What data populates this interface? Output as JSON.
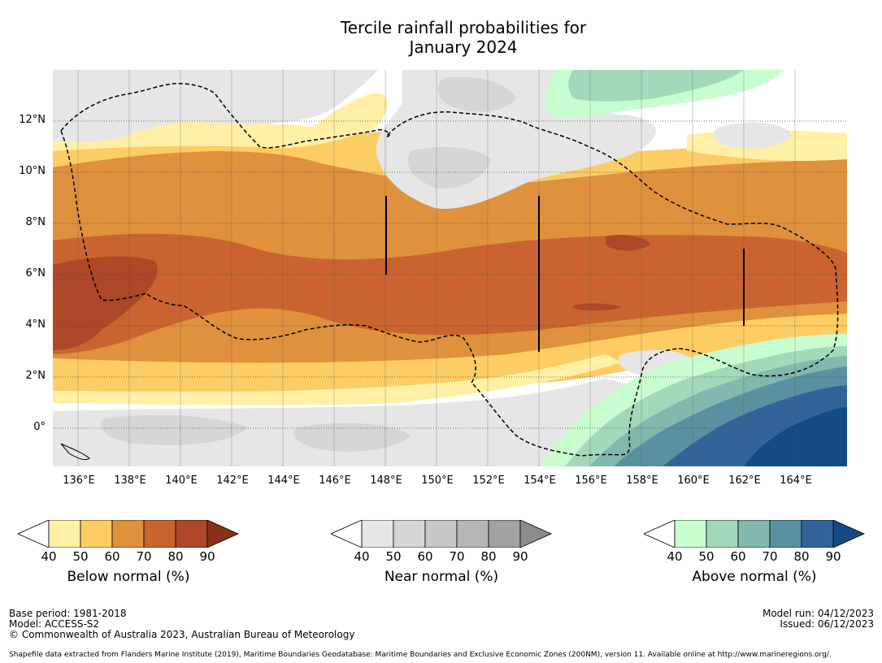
{
  "title_line1": "Tercile rainfall probabilities for",
  "title_line2": "January 2024",
  "x_ticks": [
    "136°E",
    "138°E",
    "140°E",
    "142°E",
    "144°E",
    "146°E",
    "148°E",
    "150°E",
    "152°E",
    "154°E",
    "156°E",
    "158°E",
    "160°E",
    "162°E",
    "164°E"
  ],
  "y_ticks": [
    "12°N",
    "10°N",
    "8°N",
    "6°N",
    "4°N",
    "2°N",
    "0°"
  ],
  "colorbars": {
    "below": {
      "title": "Below normal (%)",
      "ticks": [
        "40",
        "50",
        "60",
        "70",
        "80",
        "90"
      ],
      "colors": [
        "#fff0a6",
        "#fccd65",
        "#e0913e",
        "#c96430",
        "#ad4828",
        "#8a3019"
      ]
    },
    "near": {
      "title": "Near normal (%)",
      "ticks": [
        "40",
        "50",
        "60",
        "70",
        "80",
        "90"
      ],
      "colors": [
        "#e6e6e6",
        "#d6d6d6",
        "#c8c8c8",
        "#b6b6b6",
        "#a2a2a2",
        "#8c8c8c"
      ]
    },
    "above": {
      "title": "Above normal (%)",
      "ticks": [
        "40",
        "50",
        "60",
        "70",
        "80",
        "90"
      ],
      "colors": [
        "#c8fdd0",
        "#a2d9bb",
        "#82b8ae",
        "#5a91a0",
        "#336499",
        "#134b84"
      ]
    }
  },
  "footer": {
    "base_period": "Base period: 1981-2018",
    "model": "Model: ACCESS-S2",
    "copyright": "© Commonwealth of Australia 2023, Australian Bureau of Meteorology",
    "model_run": "Model run: 04/12/2023",
    "issued": "Issued: 06/12/2023",
    "shapefile": "Shapefile data extracted from Flanders Marine Institute (2019), Maritime Boundaries Geodatabase: Maritime Boundaries and Exclusive Economic Zones (200NM), version 11. Available online at http://www.marineregions.org/."
  }
}
